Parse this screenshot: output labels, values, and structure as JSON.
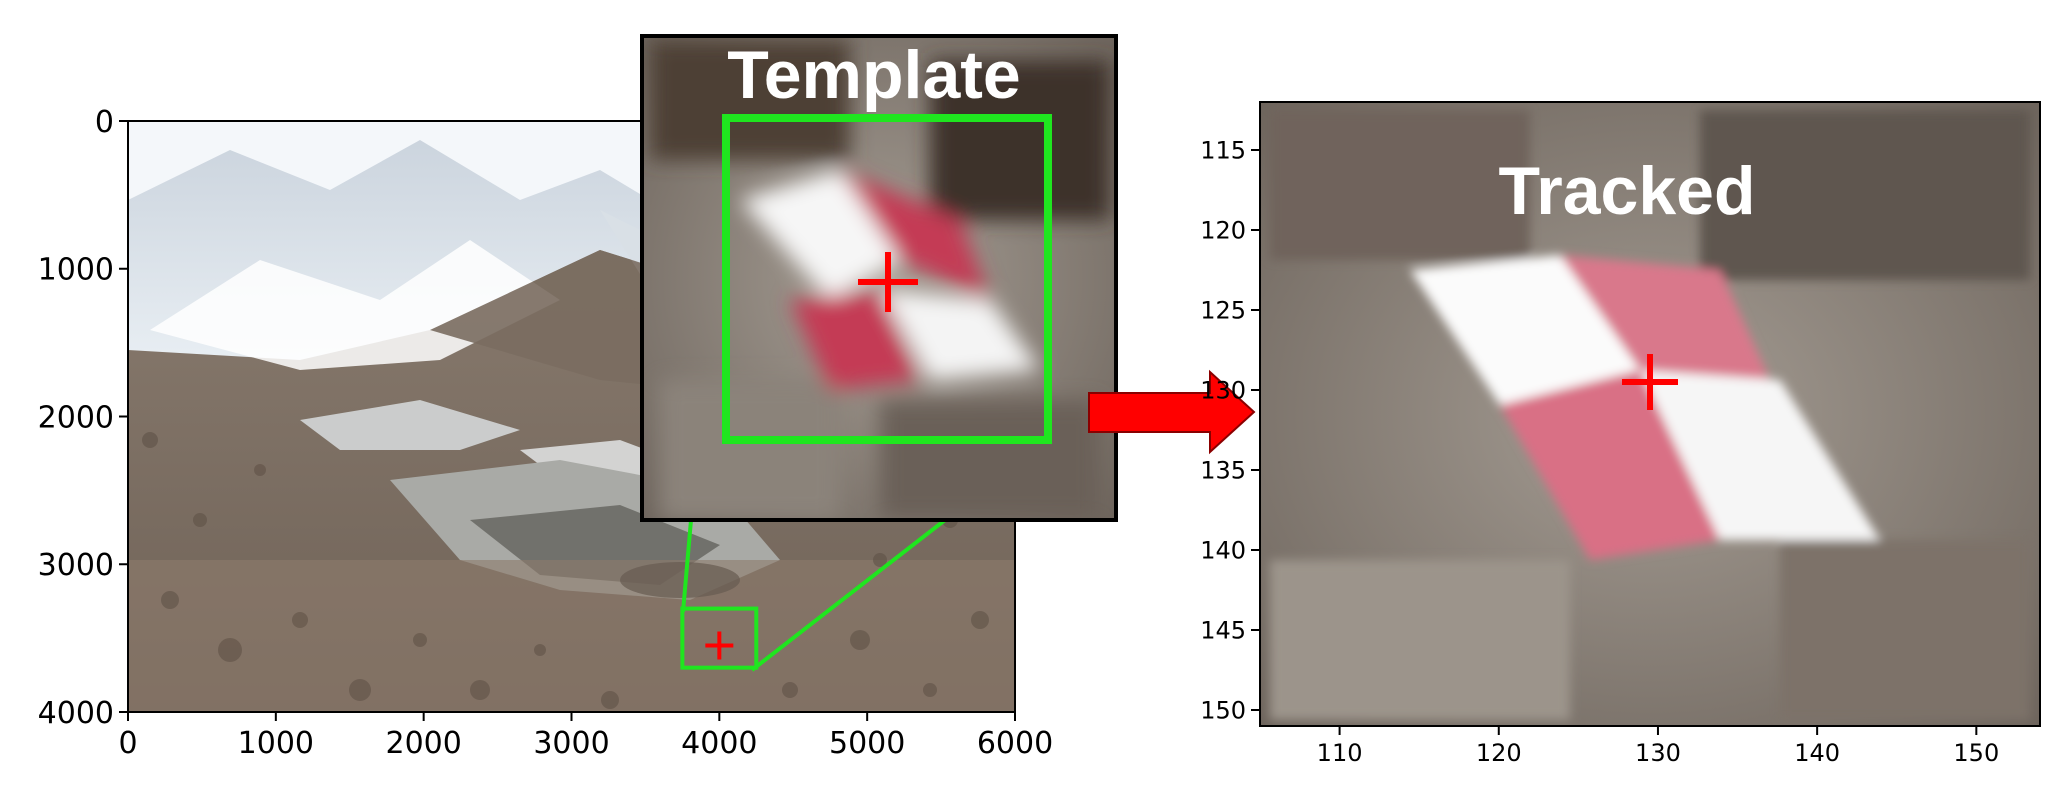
{
  "labels": {
    "template": "Template",
    "tracked": "Tracked"
  },
  "colors": {
    "highlight_box": "#1fe61f",
    "marker": "#ff0000",
    "arrow": "#ff0000"
  },
  "chart_data": [
    {
      "type": "image",
      "xlim": [
        0,
        6000
      ],
      "ylim": [
        4000,
        0
      ],
      "x_ticks": [
        "0",
        "1000",
        "2000",
        "3000",
        "4000",
        "5000",
        "6000"
      ],
      "y_ticks": [
        "0",
        "1000",
        "2000",
        "3000",
        "4000"
      ],
      "template_box": {
        "x": [
          3750,
          4250
        ],
        "y": [
          3300,
          3700
        ]
      },
      "marker": {
        "x": 4000,
        "y": 3550
      }
    },
    {
      "type": "image",
      "xlim": [
        105,
        154
      ],
      "ylim": [
        151,
        112
      ],
      "x_ticks": [
        "110",
        "120",
        "130",
        "140",
        "150"
      ],
      "y_ticks": [
        "115",
        "120",
        "125",
        "130",
        "135",
        "140",
        "145",
        "150"
      ],
      "marker": {
        "x": 129.5,
        "y": 129.5
      }
    }
  ]
}
